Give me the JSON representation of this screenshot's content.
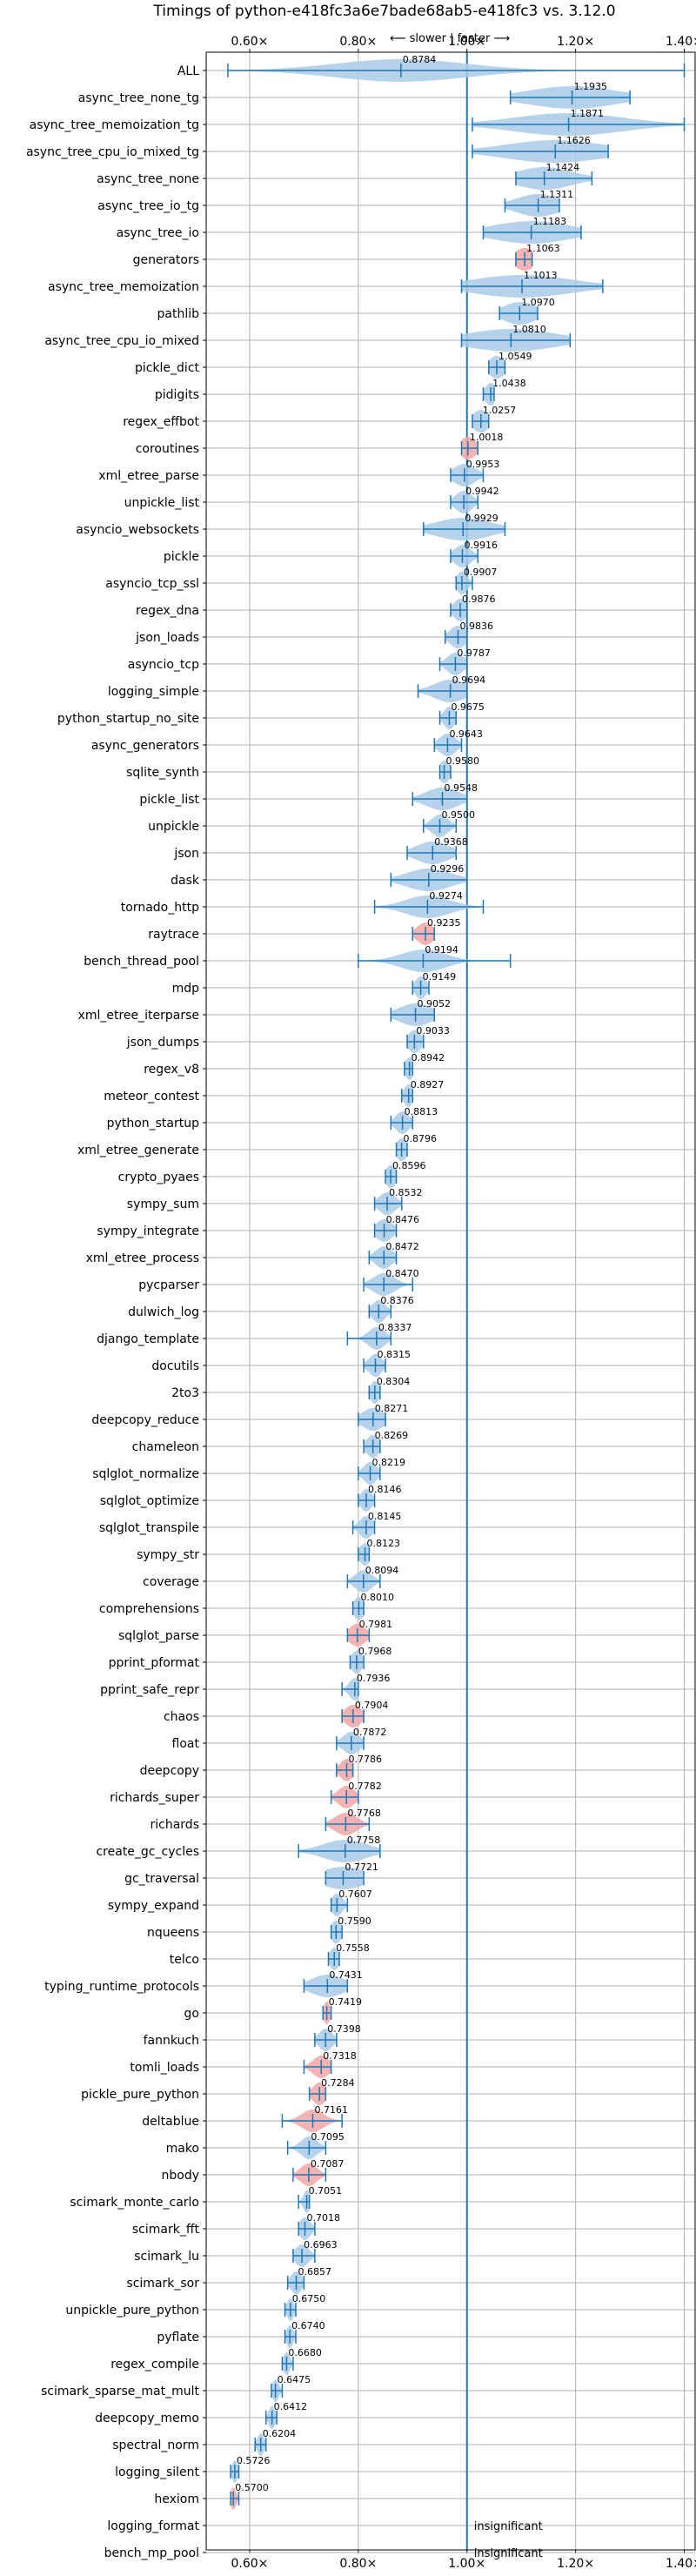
{
  "chart_data": {
    "type": "violin",
    "title": "Timings of python-e418fc3a6e7bade68ab5-e418fc3 vs. 3.12.0",
    "xlim": [
      0.52,
      1.42
    ],
    "xticks": [
      0.6,
      0.8,
      1.0,
      1.2,
      1.4
    ],
    "xtick_labels": [
      "0.60×",
      "0.80×",
      "1.00×",
      "1.20×",
      "1.40×"
    ],
    "direction_annotation": "⟵ slower | faster ⟶",
    "reference_line": 1.0,
    "grid": true,
    "colors": {
      "violin": "#a9cbe8",
      "violin_slower": "#f4a6a6",
      "line": "#1f77b4",
      "grid": "#b0b0b0"
    },
    "benchmarks": [
      {
        "name": "ALL",
        "mean": 0.8784,
        "min": 0.56,
        "max": 1.4,
        "spread": 0.12,
        "slower": false
      },
      {
        "name": "async_tree_none_tg",
        "mean": 1.1935,
        "min": 1.08,
        "max": 1.3,
        "spread": 0.08,
        "slower": false
      },
      {
        "name": "async_tree_memoization_tg",
        "mean": 1.1871,
        "min": 1.01,
        "max": 1.4,
        "spread": 0.1,
        "slower": false
      },
      {
        "name": "async_tree_cpu_io_mixed_tg",
        "mean": 1.1626,
        "min": 1.01,
        "max": 1.26,
        "spread": 0.09,
        "slower": false
      },
      {
        "name": "async_tree_none",
        "mean": 1.1424,
        "min": 1.09,
        "max": 1.23,
        "spread": 0.05,
        "slower": false
      },
      {
        "name": "async_tree_io_tg",
        "mean": 1.1311,
        "min": 1.07,
        "max": 1.17,
        "spread": 0.04,
        "slower": false
      },
      {
        "name": "async_tree_io",
        "mean": 1.1183,
        "min": 1.03,
        "max": 1.21,
        "spread": 0.07,
        "slower": false
      },
      {
        "name": "generators",
        "mean": 1.1063,
        "min": 1.09,
        "max": 1.12,
        "spread": 0.02,
        "slower": true
      },
      {
        "name": "async_tree_memoization",
        "mean": 1.1013,
        "min": 0.99,
        "max": 1.25,
        "spread": 0.09,
        "slower": false
      },
      {
        "name": "pathlib",
        "mean": 1.097,
        "min": 1.06,
        "max": 1.13,
        "spread": 0.03,
        "slower": false
      },
      {
        "name": "async_tree_cpu_io_mixed",
        "mean": 1.081,
        "min": 0.99,
        "max": 1.19,
        "spread": 0.08,
        "slower": false
      },
      {
        "name": "pickle_dict",
        "mean": 1.0549,
        "min": 1.04,
        "max": 1.07,
        "spread": 0.015,
        "slower": false
      },
      {
        "name": "pidigits",
        "mean": 1.0438,
        "min": 1.03,
        "max": 1.05,
        "spread": 0.01,
        "slower": false
      },
      {
        "name": "regex_effbot",
        "mean": 1.0257,
        "min": 1.01,
        "max": 1.04,
        "spread": 0.015,
        "slower": false
      },
      {
        "name": "coroutines",
        "mean": 1.0018,
        "min": 0.99,
        "max": 1.02,
        "spread": 0.015,
        "slower": true
      },
      {
        "name": "xml_etree_parse",
        "mean": 0.9953,
        "min": 0.97,
        "max": 1.03,
        "spread": 0.02,
        "slower": false
      },
      {
        "name": "unpickle_list",
        "mean": 0.9942,
        "min": 0.97,
        "max": 1.02,
        "spread": 0.015,
        "slower": false
      },
      {
        "name": "asyncio_websockets",
        "mean": 0.9929,
        "min": 0.92,
        "max": 1.07,
        "spread": 0.05,
        "slower": false
      },
      {
        "name": "pickle",
        "mean": 0.9916,
        "min": 0.97,
        "max": 1.02,
        "spread": 0.015,
        "slower": false
      },
      {
        "name": "asyncio_tcp_ssl",
        "mean": 0.9907,
        "min": 0.98,
        "max": 1.01,
        "spread": 0.01,
        "slower": false
      },
      {
        "name": "regex_dna",
        "mean": 0.9876,
        "min": 0.97,
        "max": 1.0,
        "spread": 0.012,
        "slower": false
      },
      {
        "name": "json_loads",
        "mean": 0.9836,
        "min": 0.96,
        "max": 1.0,
        "spread": 0.015,
        "slower": false
      },
      {
        "name": "asyncio_tcp",
        "mean": 0.9787,
        "min": 0.95,
        "max": 1.0,
        "spread": 0.015,
        "slower": false
      },
      {
        "name": "logging_simple",
        "mean": 0.9694,
        "min": 0.91,
        "max": 1.0,
        "spread": 0.03,
        "slower": false
      },
      {
        "name": "python_startup_no_site",
        "mean": 0.9675,
        "min": 0.95,
        "max": 0.98,
        "spread": 0.01,
        "slower": false
      },
      {
        "name": "async_generators",
        "mean": 0.9643,
        "min": 0.94,
        "max": 0.99,
        "spread": 0.015,
        "slower": false
      },
      {
        "name": "sqlite_synth",
        "mean": 0.958,
        "min": 0.95,
        "max": 0.97,
        "spread": 0.01,
        "slower": false
      },
      {
        "name": "pickle_list",
        "mean": 0.9548,
        "min": 0.9,
        "max": 1.0,
        "spread": 0.03,
        "slower": false
      },
      {
        "name": "unpickle",
        "mean": 0.95,
        "min": 0.92,
        "max": 0.98,
        "spread": 0.015,
        "slower": false
      },
      {
        "name": "json",
        "mean": 0.9368,
        "min": 0.89,
        "max": 0.98,
        "spread": 0.03,
        "slower": false
      },
      {
        "name": "dask",
        "mean": 0.9296,
        "min": 0.86,
        "max": 1.0,
        "spread": 0.04,
        "slower": false
      },
      {
        "name": "tornado_http",
        "mean": 0.9274,
        "min": 0.83,
        "max": 1.03,
        "spread": 0.04,
        "slower": false
      },
      {
        "name": "raytrace",
        "mean": 0.9235,
        "min": 0.9,
        "max": 0.94,
        "spread": 0.015,
        "slower": true
      },
      {
        "name": "bench_thread_pool",
        "mean": 0.9194,
        "min": 0.8,
        "max": 1.08,
        "spread": 0.04,
        "slower": false
      },
      {
        "name": "mdp",
        "mean": 0.9149,
        "min": 0.9,
        "max": 0.93,
        "spread": 0.01,
        "slower": false
      },
      {
        "name": "xml_etree_iterparse",
        "mean": 0.9052,
        "min": 0.86,
        "max": 0.94,
        "spread": 0.03,
        "slower": false
      },
      {
        "name": "json_dumps",
        "mean": 0.9033,
        "min": 0.89,
        "max": 0.92,
        "spread": 0.012,
        "slower": false
      },
      {
        "name": "regex_v8",
        "mean": 0.8942,
        "min": 0.885,
        "max": 0.9,
        "spread": 0.008,
        "slower": false
      },
      {
        "name": "meteor_contest",
        "mean": 0.8927,
        "min": 0.88,
        "max": 0.9,
        "spread": 0.008,
        "slower": false
      },
      {
        "name": "python_startup",
        "mean": 0.8813,
        "min": 0.86,
        "max": 0.9,
        "spread": 0.012,
        "slower": false
      },
      {
        "name": "xml_etree_generate",
        "mean": 0.8796,
        "min": 0.87,
        "max": 0.89,
        "spread": 0.01,
        "slower": false
      },
      {
        "name": "crypto_pyaes",
        "mean": 0.8596,
        "min": 0.85,
        "max": 0.87,
        "spread": 0.01,
        "slower": false
      },
      {
        "name": "sympy_sum",
        "mean": 0.8532,
        "min": 0.83,
        "max": 0.88,
        "spread": 0.015,
        "slower": false
      },
      {
        "name": "sympy_integrate",
        "mean": 0.8476,
        "min": 0.83,
        "max": 0.87,
        "spread": 0.015,
        "slower": false
      },
      {
        "name": "xml_etree_process",
        "mean": 0.8472,
        "min": 0.82,
        "max": 0.87,
        "spread": 0.015,
        "slower": false
      },
      {
        "name": "pycparser",
        "mean": 0.847,
        "min": 0.81,
        "max": 0.9,
        "spread": 0.02,
        "slower": false
      },
      {
        "name": "dulwich_log",
        "mean": 0.8376,
        "min": 0.82,
        "max": 0.86,
        "spread": 0.012,
        "slower": false
      },
      {
        "name": "django_template",
        "mean": 0.8337,
        "min": 0.78,
        "max": 0.86,
        "spread": 0.015,
        "slower": false
      },
      {
        "name": "docutils",
        "mean": 0.8315,
        "min": 0.81,
        "max": 0.85,
        "spread": 0.012,
        "slower": false
      },
      {
        "name": "2to3",
        "mean": 0.8304,
        "min": 0.82,
        "max": 0.84,
        "spread": 0.008,
        "slower": false
      },
      {
        "name": "deepcopy_reduce",
        "mean": 0.8271,
        "min": 0.8,
        "max": 0.85,
        "spread": 0.02,
        "slower": false
      },
      {
        "name": "chameleon",
        "mean": 0.8269,
        "min": 0.81,
        "max": 0.84,
        "spread": 0.012,
        "slower": false
      },
      {
        "name": "sqlglot_normalize",
        "mean": 0.8219,
        "min": 0.8,
        "max": 0.84,
        "spread": 0.012,
        "slower": false
      },
      {
        "name": "sqlglot_optimize",
        "mean": 0.8146,
        "min": 0.8,
        "max": 0.83,
        "spread": 0.01,
        "slower": false
      },
      {
        "name": "sqlglot_transpile",
        "mean": 0.8145,
        "min": 0.79,
        "max": 0.83,
        "spread": 0.012,
        "slower": false
      },
      {
        "name": "sympy_str",
        "mean": 0.8123,
        "min": 0.8,
        "max": 0.82,
        "spread": 0.01,
        "slower": false
      },
      {
        "name": "coverage",
        "mean": 0.8094,
        "min": 0.78,
        "max": 0.84,
        "spread": 0.015,
        "slower": false
      },
      {
        "name": "comprehensions",
        "mean": 0.801,
        "min": 0.79,
        "max": 0.81,
        "spread": 0.01,
        "slower": false
      },
      {
        "name": "sqlglot_parse",
        "mean": 0.7981,
        "min": 0.78,
        "max": 0.82,
        "spread": 0.015,
        "slower": true
      },
      {
        "name": "pprint_pformat",
        "mean": 0.7968,
        "min": 0.785,
        "max": 0.81,
        "spread": 0.01,
        "slower": false
      },
      {
        "name": "pprint_safe_repr",
        "mean": 0.7936,
        "min": 0.77,
        "max": 0.8,
        "spread": 0.01,
        "slower": false
      },
      {
        "name": "chaos",
        "mean": 0.7904,
        "min": 0.77,
        "max": 0.81,
        "spread": 0.015,
        "slower": true
      },
      {
        "name": "float",
        "mean": 0.7872,
        "min": 0.76,
        "max": 0.81,
        "spread": 0.015,
        "slower": false
      },
      {
        "name": "deepcopy",
        "mean": 0.7786,
        "min": 0.76,
        "max": 0.79,
        "spread": 0.012,
        "slower": true
      },
      {
        "name": "richards_super",
        "mean": 0.7782,
        "min": 0.75,
        "max": 0.8,
        "spread": 0.015,
        "slower": true
      },
      {
        "name": "richards",
        "mean": 0.7768,
        "min": 0.74,
        "max": 0.82,
        "spread": 0.02,
        "slower": true
      },
      {
        "name": "create_gc_cycles",
        "mean": 0.7758,
        "min": 0.69,
        "max": 0.84,
        "spread": 0.04,
        "slower": false
      },
      {
        "name": "gc_traversal",
        "mean": 0.7721,
        "min": 0.74,
        "max": 0.81,
        "spread": 0.04,
        "slower": false
      },
      {
        "name": "sympy_expand",
        "mean": 0.7607,
        "min": 0.75,
        "max": 0.78,
        "spread": 0.01,
        "slower": false
      },
      {
        "name": "nqueens",
        "mean": 0.759,
        "min": 0.75,
        "max": 0.77,
        "spread": 0.01,
        "slower": false
      },
      {
        "name": "telco",
        "mean": 0.7558,
        "min": 0.745,
        "max": 0.765,
        "spread": 0.008,
        "slower": false
      },
      {
        "name": "typing_runtime_protocols",
        "mean": 0.7431,
        "min": 0.7,
        "max": 0.78,
        "spread": 0.03,
        "slower": false
      },
      {
        "name": "go",
        "mean": 0.7419,
        "min": 0.735,
        "max": 0.75,
        "spread": 0.006,
        "slower": true
      },
      {
        "name": "fannkuch",
        "mean": 0.7398,
        "min": 0.72,
        "max": 0.76,
        "spread": 0.012,
        "slower": false
      },
      {
        "name": "tomli_loads",
        "mean": 0.7318,
        "min": 0.7,
        "max": 0.75,
        "spread": 0.015,
        "slower": true
      },
      {
        "name": "pickle_pure_python",
        "mean": 0.7284,
        "min": 0.71,
        "max": 0.74,
        "spread": 0.012,
        "slower": true
      },
      {
        "name": "deltablue",
        "mean": 0.7161,
        "min": 0.66,
        "max": 0.77,
        "spread": 0.02,
        "slower": true
      },
      {
        "name": "mako",
        "mean": 0.7095,
        "min": 0.67,
        "max": 0.74,
        "spread": 0.015,
        "slower": false
      },
      {
        "name": "nbody",
        "mean": 0.7087,
        "min": 0.68,
        "max": 0.74,
        "spread": 0.015,
        "slower": true
      },
      {
        "name": "scimark_monte_carlo",
        "mean": 0.7051,
        "min": 0.69,
        "max": 0.71,
        "spread": 0.006,
        "slower": false
      },
      {
        "name": "scimark_fft",
        "mean": 0.7018,
        "min": 0.69,
        "max": 0.72,
        "spread": 0.01,
        "slower": false
      },
      {
        "name": "scimark_lu",
        "mean": 0.6963,
        "min": 0.68,
        "max": 0.72,
        "spread": 0.012,
        "slower": false
      },
      {
        "name": "scimark_sor",
        "mean": 0.6857,
        "min": 0.67,
        "max": 0.7,
        "spread": 0.01,
        "slower": false
      },
      {
        "name": "unpickle_pure_python",
        "mean": 0.675,
        "min": 0.665,
        "max": 0.685,
        "spread": 0.006,
        "slower": false
      },
      {
        "name": "pyflate",
        "mean": 0.674,
        "min": 0.665,
        "max": 0.685,
        "spread": 0.006,
        "slower": false
      },
      {
        "name": "regex_compile",
        "mean": 0.668,
        "min": 0.66,
        "max": 0.68,
        "spread": 0.006,
        "slower": false
      },
      {
        "name": "scimark_sparse_mat_mult",
        "mean": 0.6475,
        "min": 0.64,
        "max": 0.66,
        "spread": 0.006,
        "slower": false
      },
      {
        "name": "deepcopy_memo",
        "mean": 0.6412,
        "min": 0.63,
        "max": 0.65,
        "spread": 0.006,
        "slower": false
      },
      {
        "name": "spectral_norm",
        "mean": 0.6204,
        "min": 0.61,
        "max": 0.63,
        "spread": 0.006,
        "slower": false
      },
      {
        "name": "logging_silent",
        "mean": 0.5726,
        "min": 0.565,
        "max": 0.58,
        "spread": 0.005,
        "slower": false
      },
      {
        "name": "hexiom",
        "mean": 0.57,
        "min": 0.565,
        "max": 0.58,
        "spread": 0.005,
        "slower": true
      },
      {
        "name": "logging_format",
        "insignificant": true,
        "label": "insignificant"
      },
      {
        "name": "bench_mp_pool",
        "insignificant": true,
        "label": "insignificant"
      }
    ]
  }
}
